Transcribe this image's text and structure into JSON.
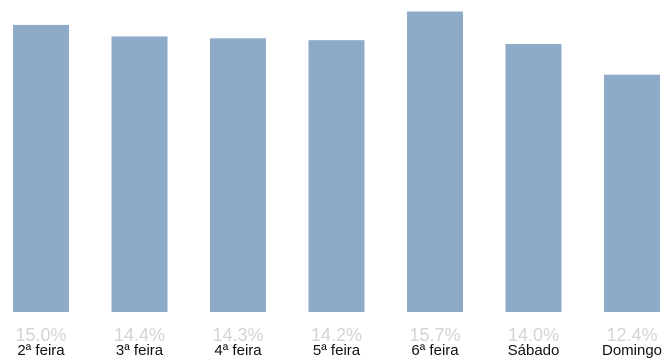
{
  "chart_data": {
    "type": "bar",
    "title": "",
    "xlabel": "",
    "ylabel": "",
    "categories": [
      "2ª feira",
      "3ª feira",
      "4ª feira",
      "5ª feira",
      "6ª feira",
      "Sábado",
      "Domingo"
    ],
    "values": [
      15.0,
      14.4,
      14.3,
      14.2,
      15.7,
      14.0,
      12.4
    ],
    "value_labels": [
      "15.0%",
      "14.4%",
      "14.3%",
      "14.2%",
      "15.7%",
      "14.0%",
      "12.4%"
    ],
    "ylim": [
      0,
      16.3
    ],
    "grid": false,
    "legend": "none",
    "colors": {
      "bar": "#8eaac9",
      "value_label": "#d4d4d4",
      "category_label": "#111111"
    }
  }
}
